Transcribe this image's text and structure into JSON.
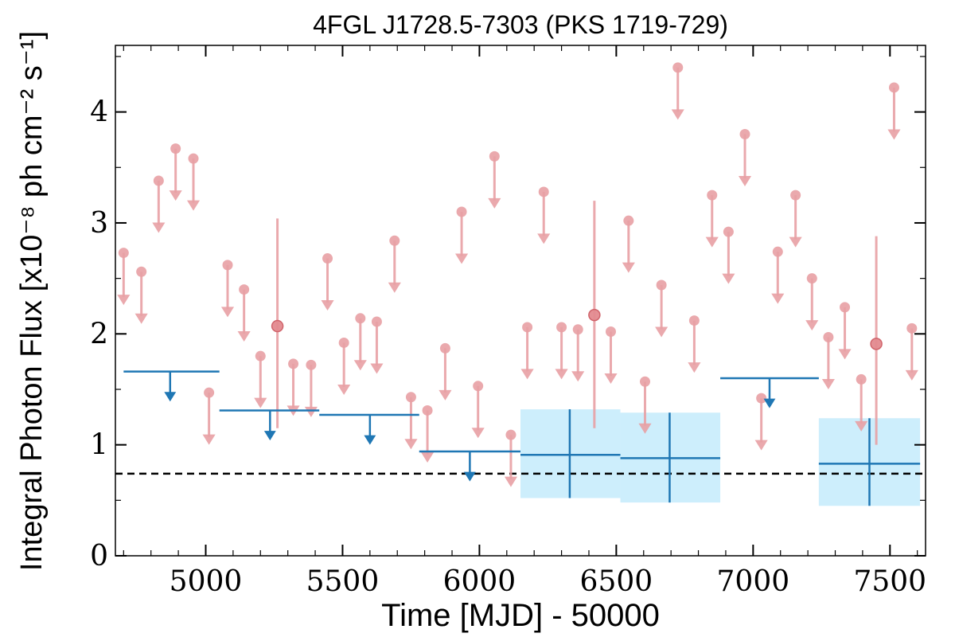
{
  "chart_data": {
    "type": "scatter",
    "title": "4FGL J1728.5-7303 (PKS 1719-729)",
    "xlabel": "Time [MJD] - 50000",
    "ylabel": "Integral Photon Flux [x10⁻⁸ ph cm⁻² s⁻¹]",
    "xlim": [
      4670,
      7630
    ],
    "ylim": [
      0,
      4.6
    ],
    "xticks": [
      5000,
      5500,
      6000,
      6500,
      7000,
      7500
    ],
    "yticks": [
      0,
      1,
      2,
      3,
      4
    ],
    "reference_line": {
      "y": 0.74,
      "style": "dashed",
      "color": "#000000"
    },
    "fine_series": {
      "color": "#e8a0a4",
      "upper_limits": [
        {
          "x": 4700,
          "y": 2.73
        },
        {
          "x": 4765,
          "y": 2.56
        },
        {
          "x": 4828,
          "y": 3.38
        },
        {
          "x": 4890,
          "y": 3.67
        },
        {
          "x": 4955,
          "y": 3.58
        },
        {
          "x": 5012,
          "y": 1.47
        },
        {
          "x": 5080,
          "y": 2.62
        },
        {
          "x": 5140,
          "y": 2.4
        },
        {
          "x": 5200,
          "y": 1.8
        },
        {
          "x": 5320,
          "y": 1.73
        },
        {
          "x": 5385,
          "y": 1.72
        },
        {
          "x": 5445,
          "y": 2.68
        },
        {
          "x": 5505,
          "y": 1.92
        },
        {
          "x": 5565,
          "y": 2.14
        },
        {
          "x": 5625,
          "y": 2.11
        },
        {
          "x": 5690,
          "y": 2.84
        },
        {
          "x": 5750,
          "y": 1.43
        },
        {
          "x": 5810,
          "y": 1.31
        },
        {
          "x": 5875,
          "y": 1.87
        },
        {
          "x": 5935,
          "y": 3.1
        },
        {
          "x": 5995,
          "y": 1.53
        },
        {
          "x": 6055,
          "y": 3.6
        },
        {
          "x": 6115,
          "y": 1.09
        },
        {
          "x": 6175,
          "y": 2.06
        },
        {
          "x": 6235,
          "y": 3.28
        },
        {
          "x": 6300,
          "y": 2.06
        },
        {
          "x": 6360,
          "y": 2.04
        },
        {
          "x": 6480,
          "y": 2.02
        },
        {
          "x": 6545,
          "y": 3.02
        },
        {
          "x": 6605,
          "y": 1.57
        },
        {
          "x": 6665,
          "y": 2.44
        },
        {
          "x": 6725,
          "y": 4.4
        },
        {
          "x": 6785,
          "y": 2.12
        },
        {
          "x": 6850,
          "y": 3.25
        },
        {
          "x": 6910,
          "y": 2.92
        },
        {
          "x": 6970,
          "y": 3.8
        },
        {
          "x": 7030,
          "y": 1.42
        },
        {
          "x": 7090,
          "y": 2.74
        },
        {
          "x": 7155,
          "y": 3.25
        },
        {
          "x": 7215,
          "y": 2.5
        },
        {
          "x": 7275,
          "y": 1.97
        },
        {
          "x": 7335,
          "y": 2.24
        },
        {
          "x": 7395,
          "y": 1.59
        },
        {
          "x": 7515,
          "y": 4.22
        },
        {
          "x": 7580,
          "y": 2.05
        }
      ],
      "detections": [
        {
          "x": 5262,
          "y": 2.07,
          "yerr_low": 1.15,
          "yerr_high": 3.04
        },
        {
          "x": 6420,
          "y": 2.17,
          "yerr_low": 1.15,
          "yerr_high": 3.2
        },
        {
          "x": 7450,
          "y": 1.91,
          "yerr_low": 1.0,
          "yerr_high": 2.88
        }
      ]
    },
    "coarse_series": {
      "color": "#1f77b4",
      "band_color": "#cdeefc",
      "upper_limits": [
        {
          "x": 4870,
          "x_low": 4700,
          "x_high": 5050,
          "y": 1.66
        },
        {
          "x": 5235,
          "x_low": 5050,
          "x_high": 5415,
          "y": 1.31
        },
        {
          "x": 5600,
          "x_low": 5415,
          "x_high": 5780,
          "y": 1.27
        },
        {
          "x": 5965,
          "x_low": 5780,
          "x_high": 6150,
          "y": 0.94
        },
        {
          "x": 7060,
          "x_low": 6880,
          "x_high": 7240,
          "y": 1.6
        }
      ],
      "detections": [
        {
          "x": 6330,
          "x_low": 6150,
          "x_high": 6515,
          "y": 0.91,
          "yerr_low": 0.52,
          "yerr_high": 1.32
        },
        {
          "x": 6695,
          "x_low": 6515,
          "x_high": 6880,
          "y": 0.88,
          "yerr_low": 0.48,
          "yerr_high": 1.29
        },
        {
          "x": 7425,
          "x_low": 7240,
          "x_high": 7610,
          "y": 0.83,
          "yerr_low": 0.45,
          "yerr_high": 1.24
        }
      ]
    }
  }
}
